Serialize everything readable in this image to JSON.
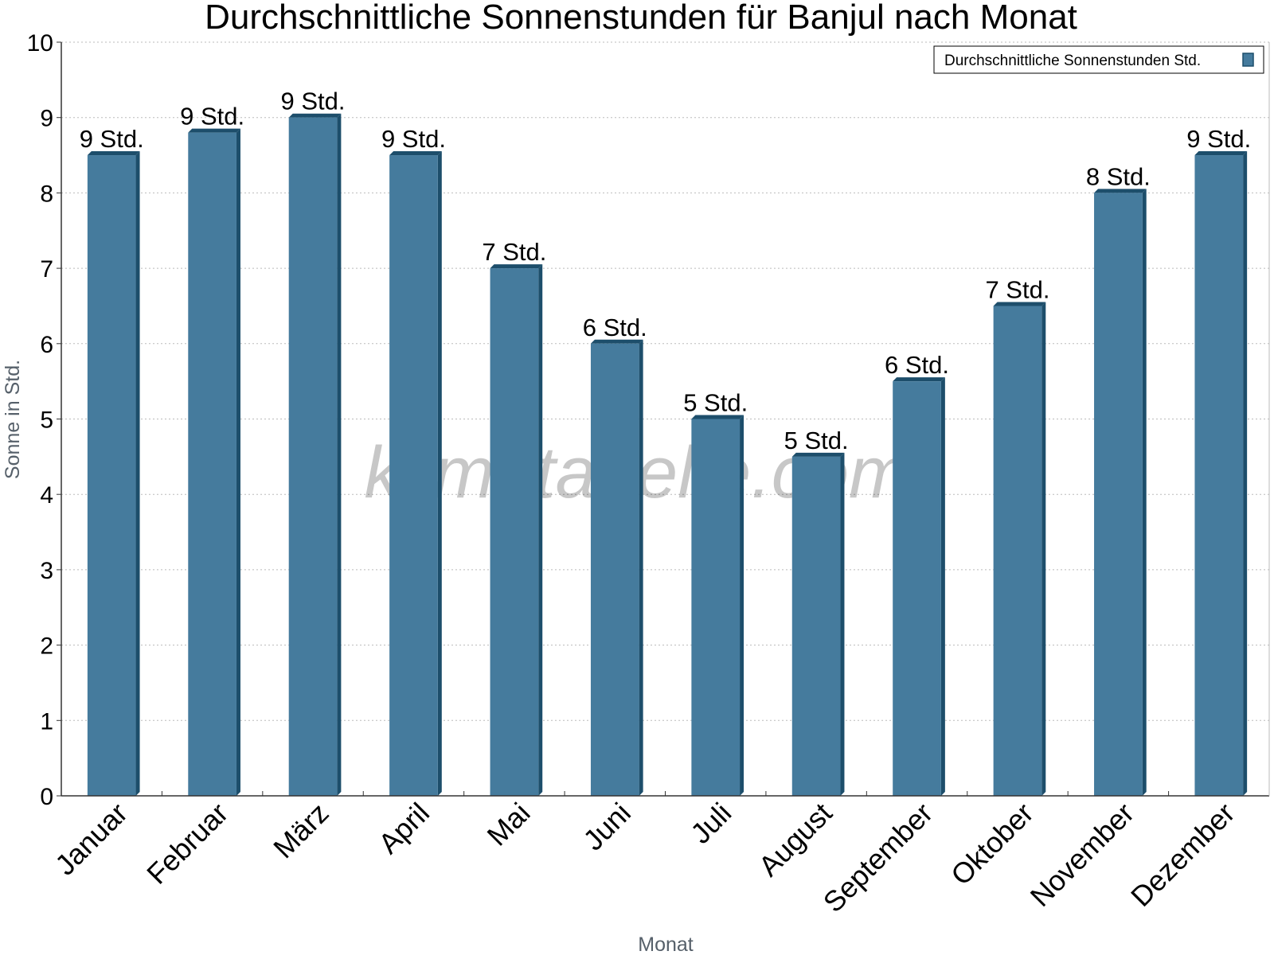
{
  "chart_data": {
    "type": "bar",
    "title": "Durchschnittliche Sonnenstunden für Banjul nach Monat",
    "xlabel": "Monat",
    "ylabel": "Sonne in Std.",
    "ylim": [
      0,
      10
    ],
    "yticks": [
      "0",
      "1",
      "2",
      "3",
      "4",
      "5",
      "6",
      "7",
      "8",
      "9",
      "10"
    ],
    "grid": true,
    "legend_position": "top-right",
    "categories": [
      "Januar",
      "Februar",
      "März",
      "April",
      "Mai",
      "Juni",
      "Juli",
      "August",
      "September",
      "Oktober",
      "November",
      "Dezember"
    ],
    "series": [
      {
        "name": "Durchschnittliche Sonnenstunden Std.",
        "values": [
          8.5,
          8.8,
          9.0,
          8.5,
          7.0,
          6.0,
          5.0,
          4.5,
          5.5,
          6.5,
          8.0,
          8.5
        ],
        "labels": [
          "9 Std.",
          "9 Std.",
          "9 Std.",
          "9 Std.",
          "7 Std.",
          "6 Std.",
          "5 Std.",
          "5 Std.",
          "6 Std.",
          "7 Std.",
          "8 Std.",
          "9 Std."
        ],
        "color": "#457b9d"
      }
    ],
    "colors": {
      "bar": "#457b9d",
      "bar_shade": "#1d4e6b",
      "grid": "#bbbbbb",
      "axis": "#333333"
    },
    "watermark": "klimatabelle.com"
  }
}
